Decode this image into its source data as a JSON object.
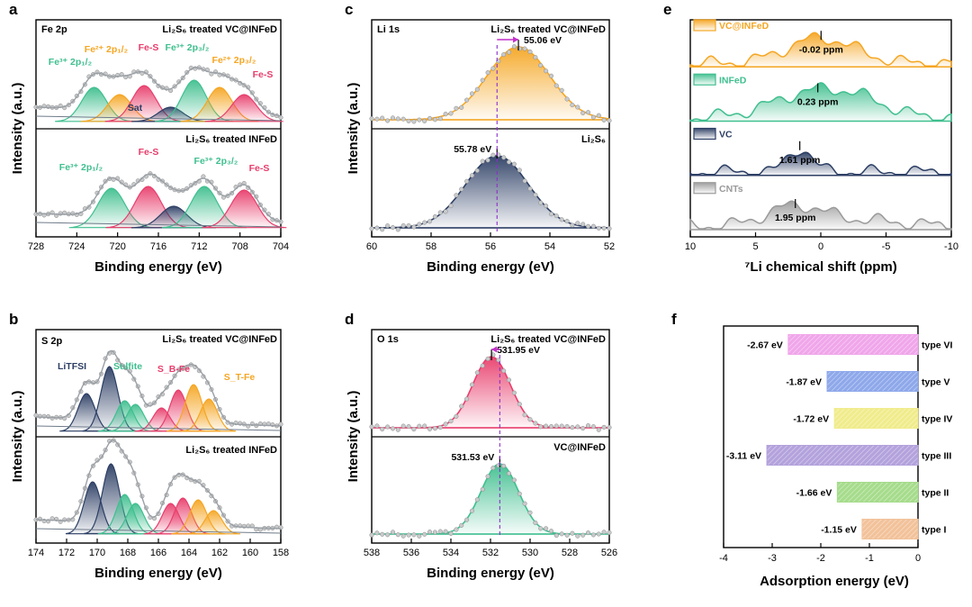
{
  "chart_data": [
    {
      "panel_label": "a",
      "type": "area",
      "xlabel": "Binding energy (eV)",
      "ylabel": "Intensity (a.u.)",
      "xlim": [
        728,
        704
      ],
      "xticks": [
        728,
        724,
        720,
        716,
        712,
        708,
        704
      ],
      "corner_label": "Fe 2p",
      "subplots": [
        {
          "title": "Li₂S₆ treated VC@INFeD",
          "peaks": [
            {
              "label": "Fe³⁺ 2p₁/₂",
              "center": 722.3,
              "color": "#3fbf8f"
            },
            {
              "label": "Fe²⁺ 2p₁/₂",
              "center": 719.8,
              "color": "#f5a623"
            },
            {
              "label": "Fe-S",
              "center": 717.4,
              "color": "#e83e6c"
            },
            {
              "label": "Sat",
              "center": 714.8,
              "color": "#2c3e64"
            },
            {
              "label": "Fe³⁺ 2p₃/₂",
              "center": 712.5,
              "color": "#3fbf8f"
            },
            {
              "label": "Fe²⁺ 2p₃/₂",
              "center": 710.0,
              "color": "#f5a623"
            },
            {
              "label": "Fe-S",
              "center": 707.6,
              "color": "#e83e6c"
            }
          ]
        },
        {
          "title": "Li₂S₆ treated INFeD",
          "peaks": [
            {
              "label": "Fe³⁺ 2p₁/₂",
              "center": 720.6,
              "color": "#3fbf8f"
            },
            {
              "label": "Fe-S",
              "center": 717.0,
              "color": "#e83e6c"
            },
            {
              "label": "Sat",
              "center": 714.5,
              "color": "#2c3e64"
            },
            {
              "label": "Fe³⁺ 2p₃/₂",
              "center": 711.5,
              "color": "#3fbf8f"
            },
            {
              "label": "Fe-S",
              "center": 707.6,
              "color": "#e83e6c"
            }
          ]
        }
      ]
    },
    {
      "panel_label": "b",
      "type": "area",
      "xlabel": "Binding energy (eV)",
      "ylabel": "Intensity (a.u.)",
      "xlim": [
        174,
        158
      ],
      "xticks": [
        174,
        172,
        170,
        168,
        166,
        164,
        162,
        160,
        158
      ],
      "corner_label": "S 2p",
      "subplots": [
        {
          "title": "Li₂S₆ treated VC@INFeD",
          "peaks": [
            {
              "label": "LiTFSI",
              "center": 170.7,
              "color": "#2c3e64"
            },
            {
              "label": "",
              "center": 169.2,
              "color": "#2c3e64"
            },
            {
              "label": "Sulfite",
              "center": 168.2,
              "color": "#3fbf8f"
            },
            {
              "label": "",
              "center": 167.5,
              "color": "#3fbf8f"
            },
            {
              "label": "",
              "center": 165.8,
              "color": "#e83e6c"
            },
            {
              "label": "S_B-Fe",
              "center": 164.7,
              "color": "#e83e6c"
            },
            {
              "label": "",
              "center": 163.7,
              "color": "#f5a623"
            },
            {
              "label": "S_T-Fe",
              "center": 162.7,
              "color": "#f5a623"
            }
          ]
        },
        {
          "title": "Li₂S₆ treated INFeD",
          "peaks": [
            {
              "label": "",
              "center": 170.3,
              "color": "#2c3e64"
            },
            {
              "label": "",
              "center": 169.1,
              "color": "#2c3e64"
            },
            {
              "label": "",
              "center": 168.2,
              "color": "#3fbf8f"
            },
            {
              "label": "",
              "center": 167.5,
              "color": "#3fbf8f"
            },
            {
              "label": "",
              "center": 165.2,
              "color": "#e83e6c"
            },
            {
              "label": "",
              "center": 164.4,
              "color": "#e83e6c"
            },
            {
              "label": "",
              "center": 163.4,
              "color": "#f5a623"
            },
            {
              "label": "",
              "center": 162.4,
              "color": "#f5a623"
            }
          ]
        }
      ]
    },
    {
      "panel_label": "c",
      "type": "area",
      "xlabel": "Binding energy (eV)",
      "ylabel": "Intensity (a.u.)",
      "xlim": [
        60,
        52
      ],
      "xticks": [
        60,
        58,
        56,
        54,
        52
      ],
      "corner_label": "Li 1s",
      "subplots": [
        {
          "title": "Li₂S₆ treated VC@INFeD",
          "peak_center": 55.06,
          "peak_label": "55.06 eV",
          "color": "#f5a623"
        },
        {
          "title": "Li₂S₆",
          "peak_center": 55.78,
          "peak_label": "55.78 eV",
          "color": "#2c3e64"
        }
      ]
    },
    {
      "panel_label": "d",
      "type": "area",
      "xlabel": "Binding energy (eV)",
      "ylabel": "Intensity (a.u.)",
      "xlim": [
        538,
        526
      ],
      "xticks": [
        538,
        536,
        534,
        532,
        530,
        528,
        526
      ],
      "corner_label": "O 1s",
      "subplots": [
        {
          "title": "Li₂S₆ treated VC@INFeD",
          "peak_center": 531.95,
          "peak_label": "531.95 eV",
          "color": "#e83e6c"
        },
        {
          "title": "VC@INFeD",
          "peak_center": 531.53,
          "peak_label": "531.53 eV",
          "color": "#3fbf8f"
        }
      ]
    },
    {
      "panel_label": "e",
      "type": "area",
      "xlabel": "⁷Li chemical shift (ppm)",
      "xlim": [
        10,
        -10
      ],
      "xticks": [
        10,
        5,
        0,
        -5,
        -10
      ],
      "series": [
        {
          "name": "VC@INFeD",
          "peak": -0.02,
          "peak_label": "-0.02 ppm",
          "color": "#f5a623"
        },
        {
          "name": "INFeD",
          "peak": 0.23,
          "peak_label": "0.23 ppm",
          "color": "#3fbf8f"
        },
        {
          "name": "VC",
          "peak": 1.61,
          "peak_label": "1.61 ppm",
          "color": "#2c3e64"
        },
        {
          "name": "CNTs",
          "peak": 1.95,
          "peak_label": "1.95 ppm",
          "color": "#9a9a9a"
        }
      ]
    },
    {
      "panel_label": "f",
      "type": "bar",
      "orientation": "horizontal",
      "xlabel": "Adsorption energy (eV)",
      "xlim": [
        -4,
        0
      ],
      "xticks": [
        -4,
        -3,
        -2,
        -1,
        0
      ],
      "categories": [
        "type VI",
        "type V",
        "type IV",
        "type III",
        "type II",
        "type I"
      ],
      "values": [
        -2.67,
        -1.87,
        -1.72,
        -3.11,
        -1.66,
        -1.15
      ],
      "value_labels": [
        "-2.67 eV",
        "-1.87 eV",
        "-1.72 eV",
        "-3.11 eV",
        "-1.66 eV",
        "-1.15 eV"
      ],
      "colors": [
        "#f0a6ea",
        "#8ea8ea",
        "#f0ec8c",
        "#b3a2dc",
        "#a6dc8c",
        "#f2c29a"
      ]
    }
  ]
}
